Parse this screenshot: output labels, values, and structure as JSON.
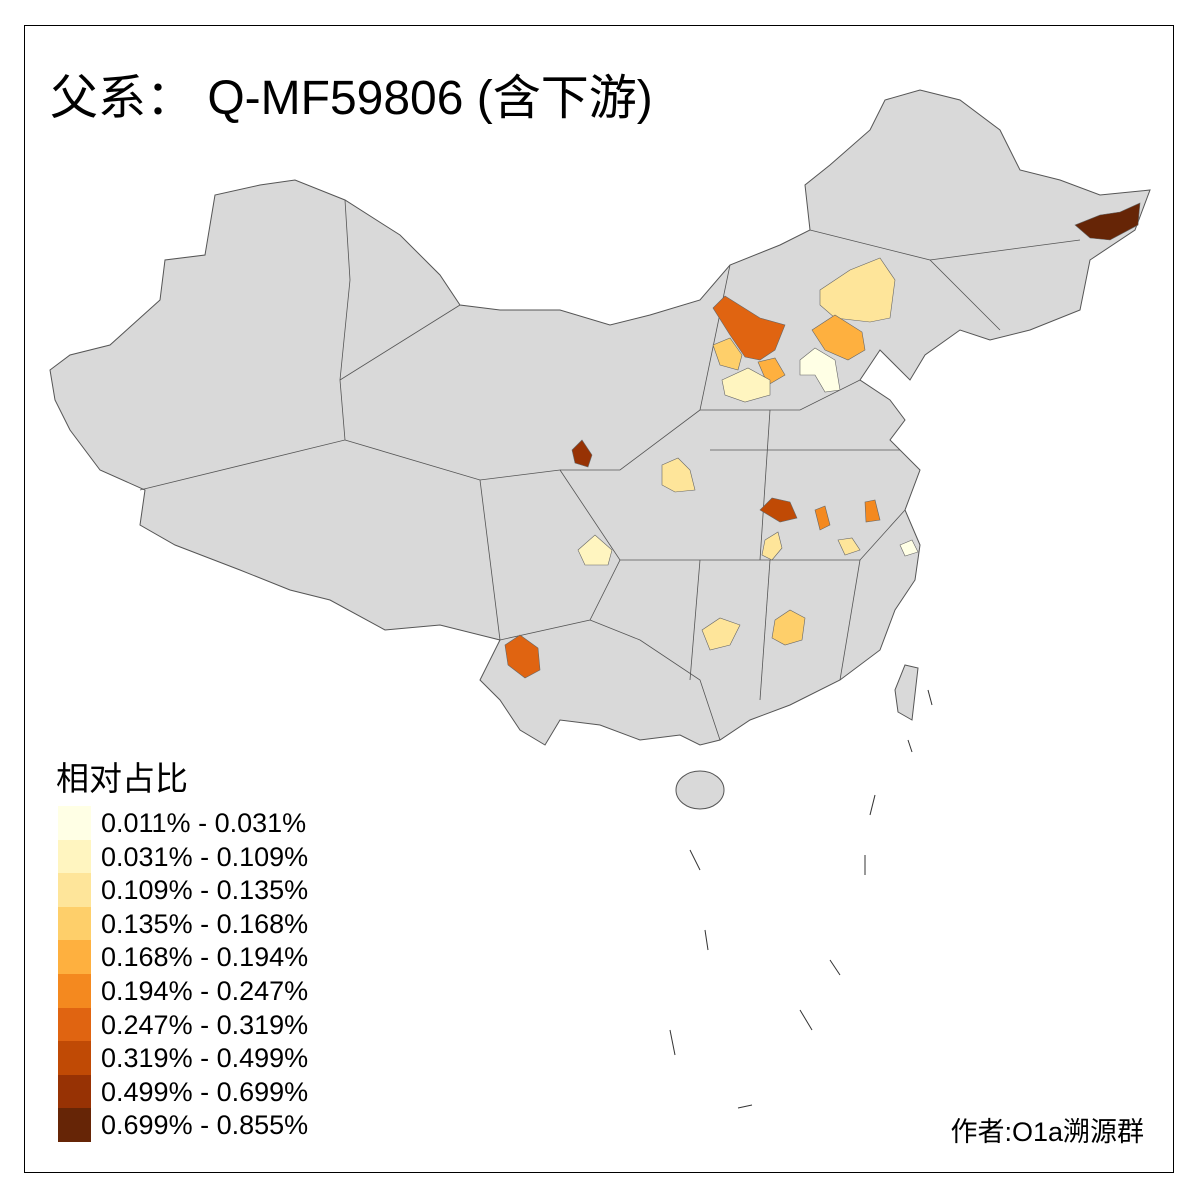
{
  "title": "父系： Q-MF59806 (含下游)",
  "legend": {
    "title": "相对占比",
    "items": [
      {
        "label": "0.011% - 0.031%",
        "color": "#ffffe5"
      },
      {
        "label": "0.031% - 0.109%",
        "color": "#fff5c0"
      },
      {
        "label": "0.109% - 0.135%",
        "color": "#fee59a"
      },
      {
        "label": "0.135% - 0.168%",
        "color": "#fecf6a"
      },
      {
        "label": "0.168% - 0.194%",
        "color": "#feb03f"
      },
      {
        "label": "0.194% - 0.247%",
        "color": "#f4891f"
      },
      {
        "label": "0.247% - 0.319%",
        "color": "#e06411"
      },
      {
        "label": "0.319% - 0.499%",
        "color": "#c04a05"
      },
      {
        "label": "0.499% - 0.699%",
        "color": "#973204"
      },
      {
        "label": "0.699% - 0.855%",
        "color": "#662506"
      }
    ]
  },
  "author": "作者:O1a溯源群",
  "colors": {
    "base_region": "#d9d9d9",
    "border": "#555555"
  }
}
